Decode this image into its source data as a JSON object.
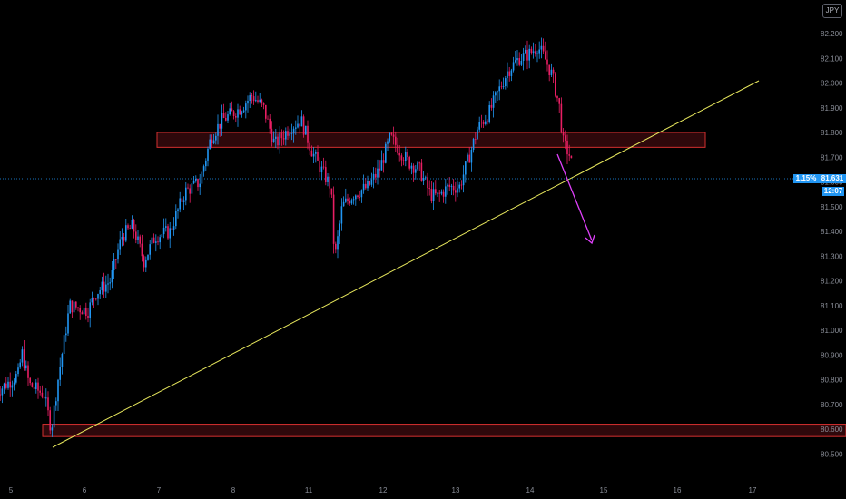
{
  "symbol_badge": "JPY",
  "current_price": "81.631",
  "change_percent": "1.15%",
  "countdown": "12:07",
  "colors": {
    "background": "#000000",
    "bull": "#2196f3",
    "bear": "#e91e63",
    "trendline": "#e6e65c",
    "zone_border": "#d32f2f",
    "zone_fill": "#3a0a0e",
    "arrow": "#e040fb",
    "price_line": "#2196f3"
  },
  "chart_data": {
    "type": "candlestick",
    "x_ticks": [
      "5",
      "6",
      "7",
      "8",
      "11",
      "12",
      "13",
      "14",
      "15",
      "16",
      "17"
    ],
    "y_ticks": [
      "82.200",
      "82.100",
      "82.000",
      "81.900",
      "81.800",
      "81.700",
      "81.600",
      "81.500",
      "81.400",
      "81.300",
      "81.200",
      "81.100",
      "81.000",
      "80.900",
      "80.800",
      "80.700",
      "80.600",
      "80.500"
    ],
    "ylim": [
      80.47,
      82.23
    ],
    "close_path": [
      [
        4.8,
        80.75
      ],
      [
        5.1,
        80.82
      ],
      [
        5.15,
        80.91
      ],
      [
        5.25,
        80.78
      ],
      [
        5.45,
        80.74
      ],
      [
        5.55,
        80.6
      ],
      [
        5.65,
        80.82
      ],
      [
        5.8,
        81.1
      ],
      [
        6.05,
        81.08
      ],
      [
        6.15,
        81.15
      ],
      [
        6.35,
        81.2
      ],
      [
        6.5,
        81.38
      ],
      [
        6.65,
        81.42
      ],
      [
        6.8,
        81.28
      ],
      [
        6.95,
        81.38
      ],
      [
        7.15,
        81.4
      ],
      [
        7.35,
        81.56
      ],
      [
        7.55,
        81.6
      ],
      [
        7.7,
        81.78
      ],
      [
        7.85,
        81.85
      ],
      [
        8.1,
        81.9
      ],
      [
        8.25,
        81.95
      ],
      [
        8.4,
        81.9
      ],
      [
        8.55,
        81.75
      ],
      [
        8.75,
        81.82
      ],
      [
        8.9,
        81.85
      ],
      [
        9.05,
        81.72
      ],
      [
        9.15,
        81.66
      ],
      [
        9.3,
        81.58
      ],
      [
        9.35,
        81.28
      ],
      [
        9.45,
        81.5
      ],
      [
        9.6,
        81.55
      ],
      [
        9.8,
        81.58
      ],
      [
        9.95,
        81.65
      ],
      [
        10.1,
        81.78
      ],
      [
        10.25,
        81.72
      ],
      [
        10.35,
        81.68
      ],
      [
        10.5,
        81.65
      ],
      [
        10.65,
        81.55
      ],
      [
        10.75,
        81.54
      ],
      [
        10.9,
        81.58
      ],
      [
        11.05,
        81.58
      ],
      [
        11.2,
        81.72
      ],
      [
        11.3,
        81.82
      ],
      [
        11.45,
        81.88
      ],
      [
        11.55,
        81.95
      ],
      [
        11.7,
        82.05
      ],
      [
        11.85,
        82.1
      ],
      [
        12.0,
        82.12
      ],
      [
        12.1,
        82.15
      ],
      [
        12.2,
        82.1
      ],
      [
        12.3,
        82.03
      ],
      [
        12.4,
        81.9
      ],
      [
        12.45,
        81.76
      ],
      [
        12.55,
        81.7
      ],
      [
        12.58,
        81.63
      ]
    ],
    "candle_xlim": [
      4.8,
      12.58
    ],
    "horizontal_zones": [
      [
        81.74,
        81.8
      ],
      [
        80.57,
        80.62
      ]
    ],
    "trendline": [
      [
        80.59,
        82.0
      ]
    ],
    "arrow": "down"
  }
}
